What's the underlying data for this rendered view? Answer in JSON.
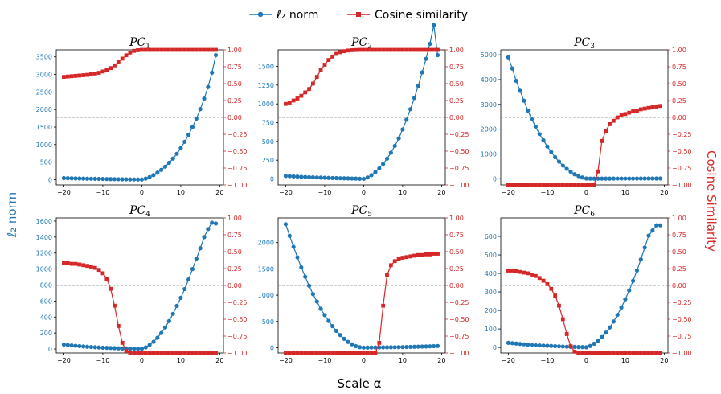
{
  "legend": {
    "l2_label": "ℓ₂ norm",
    "cos_label": "Cosine similarity"
  },
  "axis_labels": {
    "left": "ℓ₂ norm",
    "right": "Cosine Similarity",
    "bottom": "Scale α"
  },
  "colors": {
    "l2": "#1f77b4",
    "cos": "#d62728",
    "reference_line": "#808080"
  },
  "chart_data": [
    {
      "type": "line",
      "title": "PC",
      "title_sub": "1",
      "x": [
        -20,
        -19,
        -18,
        -17,
        -16,
        -15,
        -14,
        -13,
        -12,
        -11,
        -10,
        -9,
        -8,
        -7,
        -6,
        -5,
        -4,
        -3,
        -2,
        -1,
        0,
        1,
        2,
        3,
        4,
        5,
        6,
        7,
        8,
        9,
        10,
        11,
        12,
        13,
        14,
        15,
        16,
        17,
        18,
        19
      ],
      "series": [
        {
          "name": "ℓ₂ norm",
          "axis": "left",
          "values": [
            45,
            42,
            39,
            36,
            33,
            31,
            28,
            26,
            24,
            22,
            20,
            18,
            16,
            14,
            12,
            11,
            9,
            8,
            6,
            5,
            4,
            30,
            75,
            130,
            200,
            280,
            370,
            480,
            600,
            740,
            900,
            1080,
            1280,
            1500,
            1740,
            2010,
            2310,
            2640,
            3050,
            3550
          ]
        },
        {
          "name": "Cosine similarity",
          "axis": "right",
          "values": [
            0.6,
            0.605,
            0.61,
            0.615,
            0.62,
            0.625,
            0.63,
            0.64,
            0.65,
            0.66,
            0.68,
            0.7,
            0.73,
            0.77,
            0.82,
            0.87,
            0.92,
            0.96,
            0.985,
            0.995,
            1.0,
            1.0,
            1.0,
            1.0,
            1.0,
            1.0,
            1.0,
            1.0,
            1.0,
            1.0,
            1.0,
            1.0,
            1.0,
            1.0,
            1.0,
            1.0,
            1.0,
            1.0,
            1.0,
            1.0
          ]
        }
      ],
      "ylim_left": [
        -150,
        3700
      ],
      "yticks_left": [
        0,
        500,
        1000,
        1500,
        2000,
        2500,
        3000,
        3500
      ],
      "ylim_right": [
        -1.0,
        1.0
      ],
      "yticks_right": [
        "1.00",
        "0.75",
        "0.50",
        "0.25",
        "0.00",
        "−0.25",
        "−0.50",
        "−0.75",
        "−1.00"
      ],
      "xticks": [
        "−20",
        "−10",
        "0",
        "10",
        "20"
      ]
    },
    {
      "type": "line",
      "title": "PC",
      "title_sub": "2",
      "x": [
        -20,
        -19,
        -18,
        -17,
        -16,
        -15,
        -14,
        -13,
        -12,
        -11,
        -10,
        -9,
        -8,
        -7,
        -6,
        -5,
        -4,
        -3,
        -2,
        -1,
        0,
        1,
        2,
        3,
        4,
        5,
        6,
        7,
        8,
        9,
        10,
        11,
        12,
        13,
        14,
        15,
        16,
        17,
        18,
        19
      ],
      "series": [
        {
          "name": "ℓ₂ norm",
          "axis": "left",
          "values": [
            40,
            37,
            34,
            31,
            28,
            26,
            24,
            22,
            20,
            18,
            16,
            14,
            12,
            11,
            9,
            8,
            7,
            5,
            4,
            2,
            1,
            20,
            50,
            90,
            140,
            200,
            270,
            350,
            440,
            540,
            660,
            790,
            930,
            1080,
            1240,
            1420,
            1600,
            1800,
            2050,
            1650
          ]
        },
        {
          "name": "Cosine similarity",
          "axis": "right",
          "values": [
            0.2,
            0.22,
            0.25,
            0.28,
            0.32,
            0.37,
            0.42,
            0.5,
            0.6,
            0.7,
            0.78,
            0.85,
            0.9,
            0.94,
            0.965,
            0.98,
            0.99,
            0.995,
            0.998,
            1.0,
            1.0,
            1.0,
            1.0,
            1.0,
            1.0,
            1.0,
            1.0,
            1.0,
            1.0,
            1.0,
            1.0,
            1.0,
            1.0,
            1.0,
            1.0,
            1.0,
            1.0,
            1.0,
            1.0,
            1.0
          ]
        }
      ],
      "ylim_left": [
        -80,
        1720
      ],
      "yticks_left": [
        0,
        250,
        500,
        750,
        1000,
        1250,
        1500
      ],
      "ylim_right": [
        -1.0,
        1.0
      ],
      "yticks_right": [
        "1.00",
        "0.75",
        "0.50",
        "0.25",
        "0.00",
        "−0.25",
        "−0.50",
        "−0.75",
        "−1.00"
      ],
      "xticks": [
        "−20",
        "−10",
        "0",
        "10",
        "20"
      ]
    },
    {
      "type": "line",
      "title": "PC",
      "title_sub": "3",
      "x": [
        -20,
        -19,
        -18,
        -17,
        -16,
        -15,
        -14,
        -13,
        -12,
        -11,
        -10,
        -9,
        -8,
        -7,
        -6,
        -5,
        -4,
        -3,
        -2,
        -1,
        0,
        1,
        2,
        3,
        4,
        5,
        6,
        7,
        8,
        9,
        10,
        11,
        12,
        13,
        14,
        15,
        16,
        17,
        18,
        19
      ],
      "series": [
        {
          "name": "ℓ₂ norm",
          "axis": "left",
          "values": [
            4900,
            4450,
            3950,
            3550,
            3150,
            2750,
            2400,
            2100,
            1800,
            1550,
            1300,
            1080,
            870,
            690,
            530,
            400,
            280,
            180,
            110,
            50,
            10,
            5,
            5,
            5,
            6,
            6,
            6,
            7,
            7,
            7,
            8,
            8,
            8,
            9,
            9,
            9,
            10,
            10,
            10,
            11
          ]
        },
        {
          "name": "Cosine similarity",
          "axis": "right",
          "values": [
            -1.0,
            -1.0,
            -1.0,
            -1.0,
            -1.0,
            -1.0,
            -1.0,
            -1.0,
            -1.0,
            -1.0,
            -1.0,
            -1.0,
            -1.0,
            -1.0,
            -1.0,
            -1.0,
            -1.0,
            -1.0,
            -1.0,
            -1.0,
            -1.0,
            -1.0,
            -1.0,
            -0.8,
            -0.35,
            -0.2,
            -0.1,
            -0.05,
            0.0,
            0.03,
            0.05,
            0.07,
            0.09,
            0.1,
            0.12,
            0.13,
            0.14,
            0.15,
            0.16,
            0.17
          ]
        }
      ],
      "ylim_left": [
        -250,
        5200
      ],
      "yticks_left": [
        0,
        1000,
        2000,
        3000,
        4000,
        5000
      ],
      "ylim_right": [
        -1.0,
        1.0
      ],
      "yticks_right": [
        "1.00",
        "0.75",
        "0.50",
        "0.25",
        "0.00",
        "−0.25",
        "−0.50",
        "−0.75",
        "−1.00"
      ],
      "xticks": [
        "−20",
        "−10",
        "0",
        "10",
        "20"
      ]
    },
    {
      "type": "line",
      "title": "PC",
      "title_sub": "4",
      "x": [
        -20,
        -19,
        -18,
        -17,
        -16,
        -15,
        -14,
        -13,
        -12,
        -11,
        -10,
        -9,
        -8,
        -7,
        -6,
        -5,
        -4,
        -3,
        -2,
        -1,
        0,
        1,
        2,
        3,
        4,
        5,
        6,
        7,
        8,
        9,
        10,
        11,
        12,
        13,
        14,
        15,
        16,
        17,
        18,
        19
      ],
      "series": [
        {
          "name": "ℓ₂ norm",
          "axis": "left",
          "values": [
            55,
            50,
            45,
            40,
            36,
            32,
            28,
            25,
            22,
            19,
            16,
            14,
            12,
            10,
            8,
            6,
            5,
            4,
            3,
            2,
            2,
            20,
            50,
            90,
            140,
            200,
            270,
            350,
            440,
            540,
            640,
            750,
            870,
            1000,
            1130,
            1260,
            1400,
            1500,
            1580,
            1570
          ]
        },
        {
          "name": "Cosine similarity",
          "axis": "right",
          "values": [
            0.33,
            0.33,
            0.32,
            0.32,
            0.31,
            0.3,
            0.29,
            0.28,
            0.26,
            0.23,
            0.18,
            0.1,
            -0.05,
            -0.3,
            -0.6,
            -0.85,
            -0.97,
            -1.0,
            -1.0,
            -1.0,
            -1.0,
            -1.0,
            -1.0,
            -1.0,
            -1.0,
            -1.0,
            -1.0,
            -1.0,
            -1.0,
            -1.0,
            -1.0,
            -1.0,
            -1.0,
            -1.0,
            -1.0,
            -1.0,
            -1.0,
            -1.0,
            -1.0,
            -1.0
          ]
        }
      ],
      "ylim_left": [
        -50,
        1640
      ],
      "yticks_left": [
        0,
        200,
        400,
        600,
        800,
        1000,
        1200,
        1400,
        1600
      ],
      "ylim_right": [
        -1.0,
        1.0
      ],
      "yticks_right": [
        "1.00",
        "0.75",
        "0.50",
        "0.25",
        "0.00",
        "−0.25",
        "−0.50",
        "−0.75",
        "−1.00"
      ],
      "xticks": [
        "−20",
        "−10",
        "0",
        "10",
        "20"
      ]
    },
    {
      "type": "line",
      "title": "PC",
      "title_sub": "5",
      "x": [
        -20,
        -19,
        -18,
        -17,
        -16,
        -15,
        -14,
        -13,
        -12,
        -11,
        -10,
        -9,
        -8,
        -7,
        -6,
        -5,
        -4,
        -3,
        -2,
        -1,
        0,
        1,
        2,
        3,
        4,
        5,
        6,
        7,
        8,
        9,
        10,
        11,
        12,
        13,
        14,
        15,
        16,
        17,
        18,
        19
      ],
      "series": [
        {
          "name": "ℓ₂ norm",
          "axis": "left",
          "values": [
            2350,
            2130,
            1920,
            1720,
            1530,
            1350,
            1180,
            1020,
            880,
            740,
            620,
            510,
            410,
            320,
            240,
            170,
            110,
            65,
            30,
            10,
            2,
            3,
            4,
            5,
            6,
            7,
            8,
            9,
            10,
            11,
            12,
            14,
            16,
            18,
            20,
            22,
            24,
            27,
            30,
            33
          ]
        },
        {
          "name": "Cosine similarity",
          "axis": "right",
          "values": [
            -1.0,
            -1.0,
            -1.0,
            -1.0,
            -1.0,
            -1.0,
            -1.0,
            -1.0,
            -1.0,
            -1.0,
            -1.0,
            -1.0,
            -1.0,
            -1.0,
            -1.0,
            -1.0,
            -1.0,
            -1.0,
            -1.0,
            -1.0,
            -1.0,
            -1.0,
            -1.0,
            -1.0,
            -0.85,
            -0.3,
            0.15,
            0.3,
            0.36,
            0.39,
            0.41,
            0.42,
            0.43,
            0.44,
            0.45,
            0.45,
            0.46,
            0.46,
            0.47,
            0.47
          ]
        }
      ],
      "ylim_left": [
        -100,
        2470
      ],
      "yticks_left": [
        0,
        500,
        1000,
        1500,
        2000
      ],
      "ylim_right": [
        -1.0,
        1.0
      ],
      "yticks_right": [
        "1.00",
        "0.75",
        "0.50",
        "0.25",
        "0.00",
        "−0.25",
        "−0.50",
        "−0.75",
        "−1.00"
      ],
      "xticks": [
        "−20",
        "−10",
        "0",
        "10",
        "20"
      ]
    },
    {
      "type": "line",
      "title": "PC",
      "title_sub": "6",
      "x": [
        -20,
        -19,
        -18,
        -17,
        -16,
        -15,
        -14,
        -13,
        -12,
        -11,
        -10,
        -9,
        -8,
        -7,
        -6,
        -5,
        -4,
        -3,
        -2,
        -1,
        0,
        1,
        2,
        3,
        4,
        5,
        6,
        7,
        8,
        9,
        10,
        11,
        12,
        13,
        14,
        15,
        16,
        17,
        18,
        19
      ],
      "series": [
        {
          "name": "ℓ₂ norm",
          "axis": "left",
          "values": [
            25,
            23,
            21,
            19,
            17,
            15,
            14,
            12,
            11,
            10,
            9,
            8,
            7,
            6,
            5,
            4,
            3,
            3,
            2,
            2,
            1,
            8,
            20,
            36,
            56,
            80,
            108,
            140,
            176,
            216,
            260,
            308,
            360,
            416,
            476,
            540,
            604,
            632,
            660,
            660
          ]
        },
        {
          "name": "Cosine similarity",
          "axis": "right",
          "values": [
            0.22,
            0.22,
            0.21,
            0.2,
            0.19,
            0.18,
            0.16,
            0.14,
            0.11,
            0.07,
            0.02,
            -0.05,
            -0.15,
            -0.3,
            -0.5,
            -0.72,
            -0.9,
            -0.98,
            -1.0,
            -1.0,
            -1.0,
            -1.0,
            -1.0,
            -1.0,
            -1.0,
            -1.0,
            -1.0,
            -1.0,
            -1.0,
            -1.0,
            -1.0,
            -1.0,
            -1.0,
            -1.0,
            -1.0,
            -1.0,
            -1.0,
            -1.0,
            -1.0,
            -1.0
          ]
        }
      ],
      "ylim_left": [
        -30,
        700
      ],
      "yticks_left": [
        0,
        100,
        200,
        300,
        400,
        500,
        600
      ],
      "ylim_right": [
        -1.0,
        1.0
      ],
      "yticks_right": [
        "1.00",
        "0.75",
        "0.50",
        "0.25",
        "0.00",
        "−0.25",
        "−0.50",
        "−0.75",
        "−1.00"
      ],
      "xticks": [
        "−20",
        "−10",
        "0",
        "10",
        "20"
      ]
    }
  ]
}
